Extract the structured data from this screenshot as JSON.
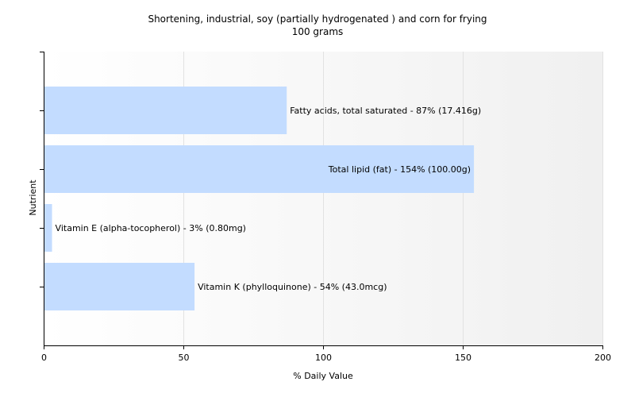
{
  "chart_data": {
    "type": "bar",
    "orientation": "horizontal",
    "title": "Shortening, industrial, soy (partially hydrogenated ) and corn for frying",
    "subtitle": "100 grams",
    "xlabel": "% Daily Value",
    "ylabel": "Nutrient",
    "xlim": [
      0,
      200
    ],
    "xticks": [
      "0",
      "50",
      "100",
      "150",
      "200"
    ],
    "grid": true,
    "bar_color": "#c3dcff",
    "categories": [
      "Fatty acids, total saturated",
      "Total lipid (fat)",
      "Vitamin E (alpha-tocopherol)",
      "Vitamin K (phylloquinone)"
    ],
    "values": [
      87,
      154,
      3,
      54
    ],
    "bar_labels": [
      "Fatty acids, total saturated - 87% (17.416g)",
      "Total lipid (fat) - 154% (100.00g)",
      "Vitamin E (alpha-tocopherol) - 3% (0.80mg)",
      "Vitamin K (phylloquinone) - 54% (43.0mcg)"
    ]
  }
}
